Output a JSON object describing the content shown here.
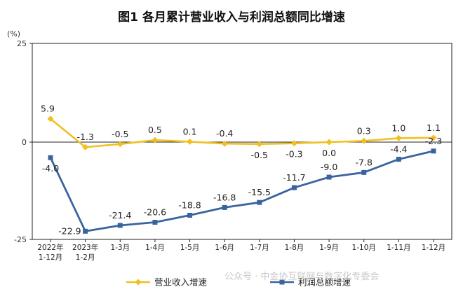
{
  "chart_data": {
    "type": "line",
    "title": "图1  各月累计营业收入与利润总额同比增速",
    "ylabel": "(%)",
    "ylim": [
      -25,
      25
    ],
    "yticks": [
      "25",
      "0",
      "-25"
    ],
    "categories": [
      [
        "2022年",
        "1-12月"
      ],
      [
        "2023年",
        "1-2月"
      ],
      [
        "1-3月"
      ],
      [
        "1-4月"
      ],
      [
        "1-5月"
      ],
      [
        "1-6月"
      ],
      [
        "1-7月"
      ],
      [
        "1-8月"
      ],
      [
        "1-9月"
      ],
      [
        "1-10月"
      ],
      [
        "1-11月"
      ],
      [
        "1-12月"
      ]
    ],
    "series": [
      {
        "name": "营业收入增速",
        "color": "#f0c020",
        "values": [
          5.9,
          -1.3,
          -0.5,
          0.5,
          0.1,
          -0.4,
          -0.5,
          -0.3,
          0.0,
          0.3,
          1.0,
          1.1
        ],
        "labels": [
          "5.9",
          "-1.3",
          "-0.5",
          "0.5",
          "0.1",
          "-0.4",
          "-0.5",
          "-0.3",
          "0.0",
          "0.3",
          "1.0",
          "1.1"
        ],
        "label_side": [
          "above",
          "above",
          "above",
          "above",
          "above",
          "above",
          "below",
          "below",
          "below",
          "above",
          "above",
          "above"
        ]
      },
      {
        "name": "利润总额增速",
        "color": "#3a64a0",
        "values": [
          -4.0,
          -22.9,
          -21.4,
          -20.6,
          -18.8,
          -16.8,
          -15.5,
          -11.7,
          -9.0,
          -7.8,
          -4.4,
          -2.3
        ],
        "labels": [
          "-4.0",
          "-22.9",
          "-21.4",
          "-20.6",
          "-18.8",
          "-16.8",
          "-15.5",
          "-11.7",
          "-9.0",
          "-7.8",
          "-4.4",
          "-2.3"
        ],
        "label_side": [
          "below",
          "left",
          "above",
          "above",
          "above",
          "above",
          "above",
          "above",
          "above",
          "above",
          "above",
          "above"
        ]
      }
    ],
    "legend_position": "bottom",
    "grid": false
  },
  "watermark": "公众号 · 中金协互联网与数字化专委会"
}
